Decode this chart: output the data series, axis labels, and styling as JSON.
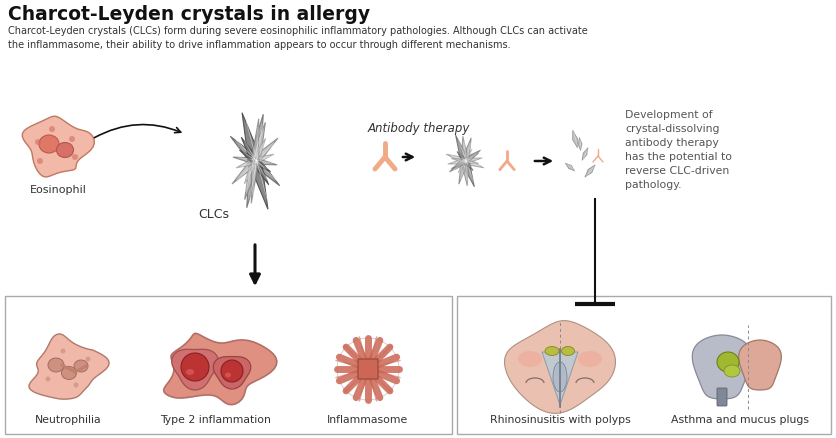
{
  "title": "Charcot-Leyden crystals in allergy",
  "subtitle": "Charcot-Leyden crystals (CLCs) form during severe eosinophilic inflammatory pathologies. Although CLCs can activate\nthe inflammasome, their ability to drive inflammation appears to occur through different mechanisms.",
  "label_eosinophil": "Eosinophil",
  "label_clcs": "CLCs",
  "label_antibody": "Antibody therapy",
  "label_development": "Development of\ncrystal-dissolving\nantibody therapy\nhas the potential to\nreverse CLC-driven\npathology.",
  "label_neutrophilia": "Neutrophilia",
  "label_type2": "Type 2 inflammation",
  "label_inflammasome": "Inflammasome",
  "label_rhinosinusitis": "Rhinosinusitis with polyps",
  "label_asthma": "Asthma and mucus plugs",
  "bg_color": "#ffffff",
  "title_color": "#111111",
  "text_color": "#333333",
  "dev_text_color": "#555555",
  "arrow_color": "#111111",
  "border_color": "#aaaaaa"
}
